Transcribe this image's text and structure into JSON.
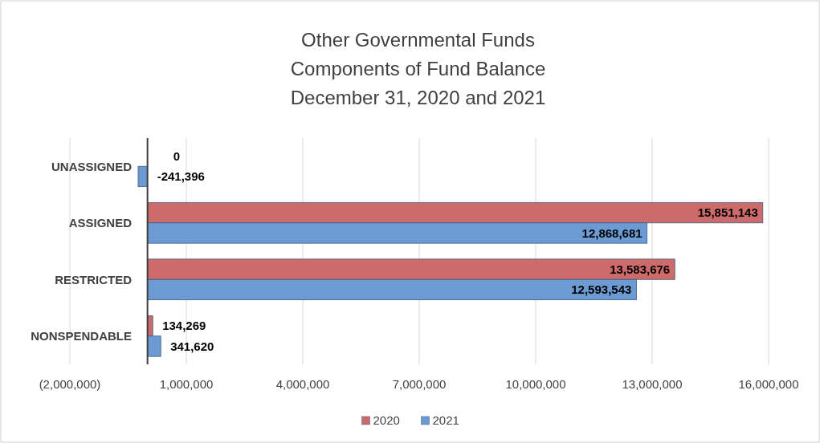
{
  "chart_data": {
    "type": "bar",
    "orientation": "horizontal",
    "title": "Other Governmental Funds\nComponents of Fund Balance\nDecember 31, 2020 and 2021",
    "categories": [
      "UNASSIGNED",
      "ASSIGNED",
      "RESTRICTED",
      "NONSPENDABLE"
    ],
    "series": [
      {
        "name": "2020",
        "color": "#cd6b6b",
        "values": [
          0,
          15851143,
          13583676,
          134269
        ],
        "value_labels": [
          "0",
          "15,851,143",
          "13,583,676",
          "134,269"
        ]
      },
      {
        "name": "2021",
        "color": "#6b9bd2",
        "values": [
          -241396,
          12868681,
          12593543,
          341620
        ],
        "value_labels": [
          "-241,396",
          "12,868,681",
          "12,593,543",
          "341,620"
        ]
      }
    ],
    "xlim": [
      -2000000,
      16000000
    ],
    "xticks": [
      {
        "value": -2000000,
        "label": "(2,000,000)"
      },
      {
        "value": 1000000,
        "label": "1,000,000"
      },
      {
        "value": 4000000,
        "label": "4,000,000"
      },
      {
        "value": 7000000,
        "label": "7,000,000"
      },
      {
        "value": 10000000,
        "label": "10,000,000"
      },
      {
        "value": 13000000,
        "label": "13,000,000"
      },
      {
        "value": 16000000,
        "label": "16,000,000"
      }
    ],
    "grid": "x",
    "legend": "bottom"
  }
}
